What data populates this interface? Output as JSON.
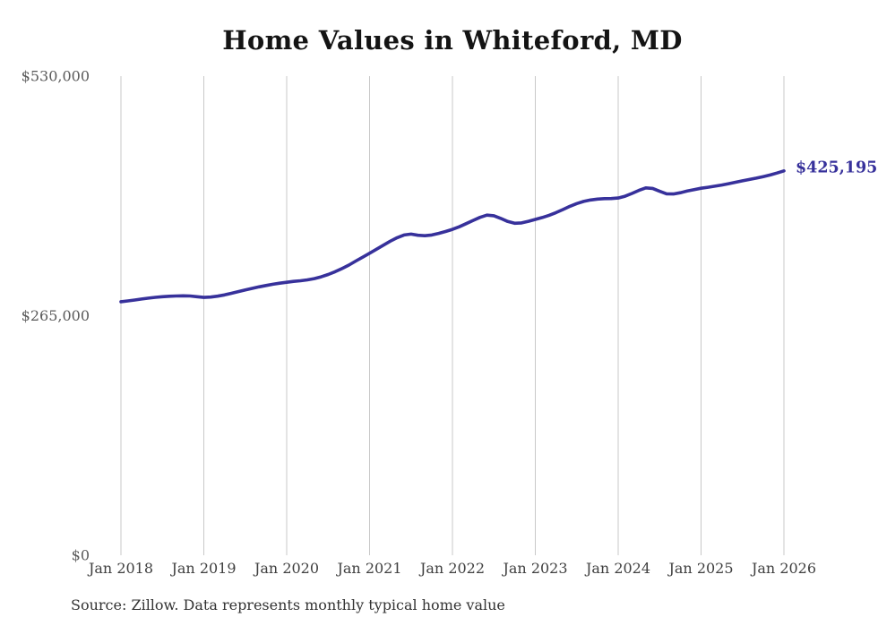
{
  "header": {
    "title": "Home Values in Whiteford, MD"
  },
  "footer": {
    "source_note": "Source: Zillow. Data represents monthly typical home value"
  },
  "colors": {
    "line": "#37319b",
    "end_label": "#37319b",
    "grid": "#c8c8c8",
    "y_tick_text": "#5a5a5a",
    "x_tick_text": "#404040",
    "title_text": "#141414",
    "background": "#ffffff"
  },
  "chart_data": {
    "type": "line",
    "title": "Home Values in Whiteford, MD",
    "xlabel": "",
    "ylabel": "",
    "legend_position": "none",
    "grid": "vertical-only",
    "ylim": [
      0,
      530000
    ],
    "y_tick_values": [
      0,
      265000,
      530000
    ],
    "y_tick_labels": [
      "$0",
      "$265,000",
      "$530,000"
    ],
    "x_tick_labels": [
      "Jan 2018",
      "Jan 2019",
      "Jan 2020",
      "Jan 2021",
      "Jan 2022",
      "Jan 2023",
      "Jan 2024",
      "Jan 2025",
      "Jan 2026"
    ],
    "end_label": {
      "text": "$425,195",
      "value": 425195
    },
    "series": [
      {
        "name": "Monthly typical home value",
        "x_start": "2018-01",
        "x_interval": "month",
        "values": [
          280500,
          281300,
          282300,
          283400,
          284400,
          285300,
          286000,
          286500,
          286800,
          287000,
          286800,
          286000,
          285200,
          285600,
          286600,
          288000,
          289800,
          291600,
          293400,
          295200,
          296900,
          298400,
          299800,
          301000,
          302000,
          302900,
          303600,
          304600,
          306000,
          308000,
          310600,
          313600,
          317100,
          321000,
          325400,
          329700,
          334000,
          338500,
          343000,
          347400,
          351300,
          354300,
          355200,
          354000,
          353500,
          354300,
          356000,
          358100,
          360500,
          363400,
          366800,
          370400,
          373800,
          376300,
          375600,
          372600,
          369200,
          367200,
          367600,
          369400,
          371500,
          373600,
          376100,
          379000,
          382400,
          386000,
          389000,
          391400,
          393000,
          394000,
          394500,
          394600,
          395200,
          397200,
          400200,
          403600,
          406400,
          405800,
          402600,
          399800,
          399600,
          401000,
          402900,
          404500,
          406000,
          407100,
          408200,
          409500,
          411000,
          412600,
          414200,
          415700,
          417200,
          418800,
          420600,
          422800,
          425195
        ]
      }
    ]
  }
}
